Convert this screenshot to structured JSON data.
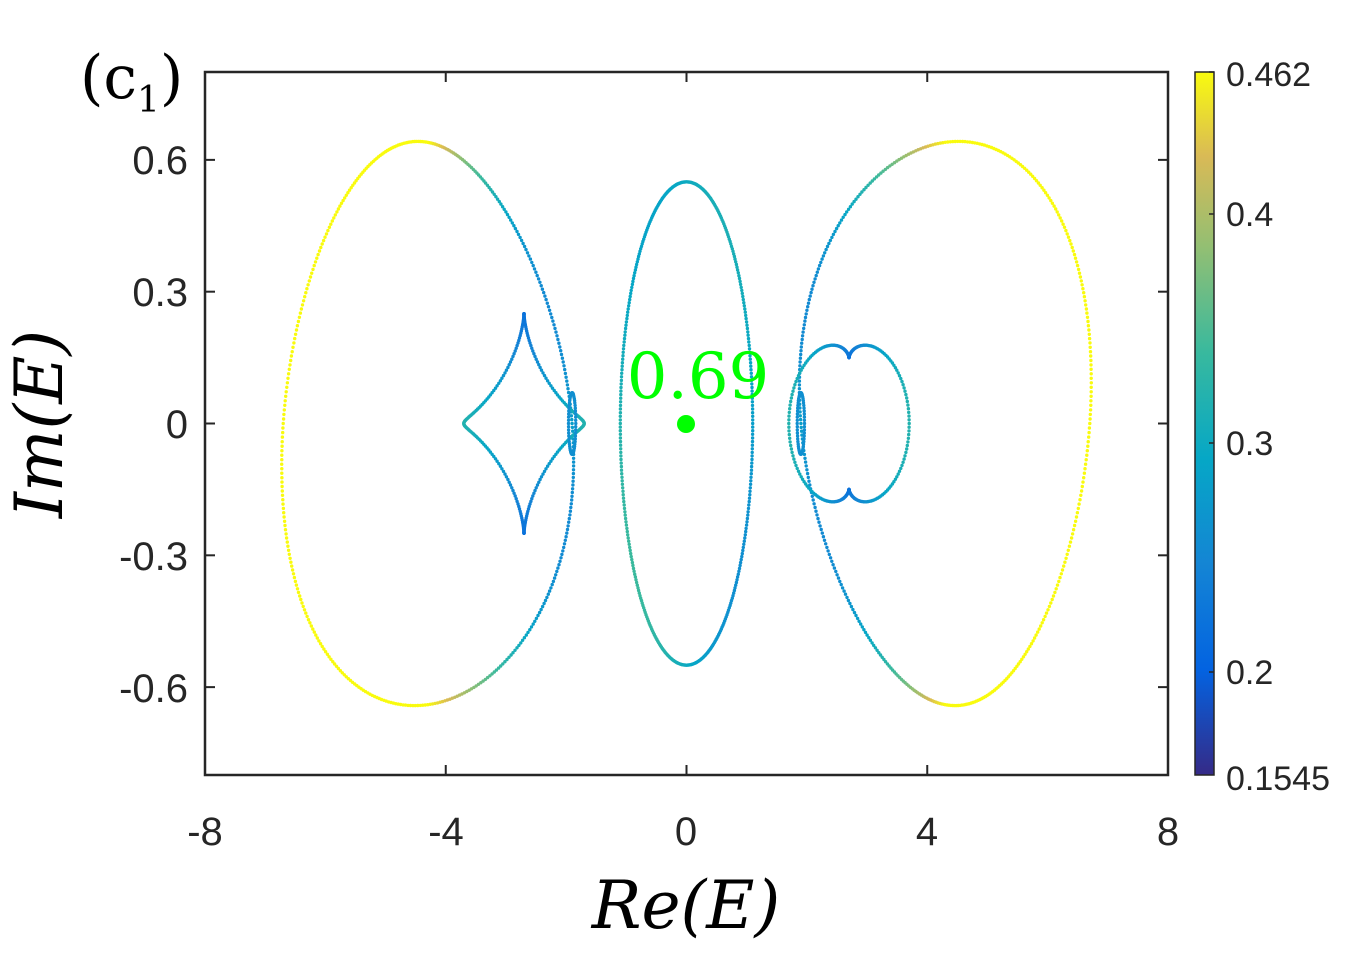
{
  "chart_data": {
    "type": "scatter",
    "panel_label": "(c",
    "panel_label_sub": "1",
    "panel_label_close": ")",
    "xlabel": "Re(E)",
    "ylabel": "Im(E)",
    "xlim": [
      -8,
      8
    ],
    "ylim": [
      -0.8,
      0.8
    ],
    "xticks": [
      -8,
      -4,
      0,
      4,
      8
    ],
    "xtick_labels": [
      "-8",
      "-4",
      "0",
      "4",
      "8"
    ],
    "yticks": [
      0.6,
      0.3,
      0,
      -0.3,
      -0.6
    ],
    "ytick_labels": [
      "0.6",
      "0.3",
      "0",
      "-0.3",
      "-0.6"
    ],
    "grid": false,
    "colormap": "parula",
    "colorbar": {
      "min": 0.1545,
      "max": 0.462,
      "ticks": [
        0.462,
        0.4,
        0.3,
        0.2,
        0.1545
      ],
      "tick_labels": [
        "0.462",
        "0.4",
        "0.3",
        "0.2",
        "0.1545"
      ]
    },
    "annotation": {
      "text": "0.69",
      "x": 0,
      "y": 0,
      "color": "#00ff00"
    },
    "curves": [
      {
        "shape": "outer-ellipse",
        "cx": -4.3,
        "cy": 0,
        "rx": 2.4,
        "ry": 0.64,
        "value_range": [
          0.28,
          0.462
        ]
      },
      {
        "shape": "outer-ellipse",
        "cx": 4.3,
        "cy": 0,
        "rx": 2.4,
        "ry": 0.64,
        "value_range": [
          0.28,
          0.462
        ]
      },
      {
        "shape": "central-ellipse",
        "cx": 0,
        "cy": 0,
        "rx": 1.1,
        "ry": 0.55,
        "value_range": [
          0.26,
          0.36
        ]
      }
    ]
  }
}
